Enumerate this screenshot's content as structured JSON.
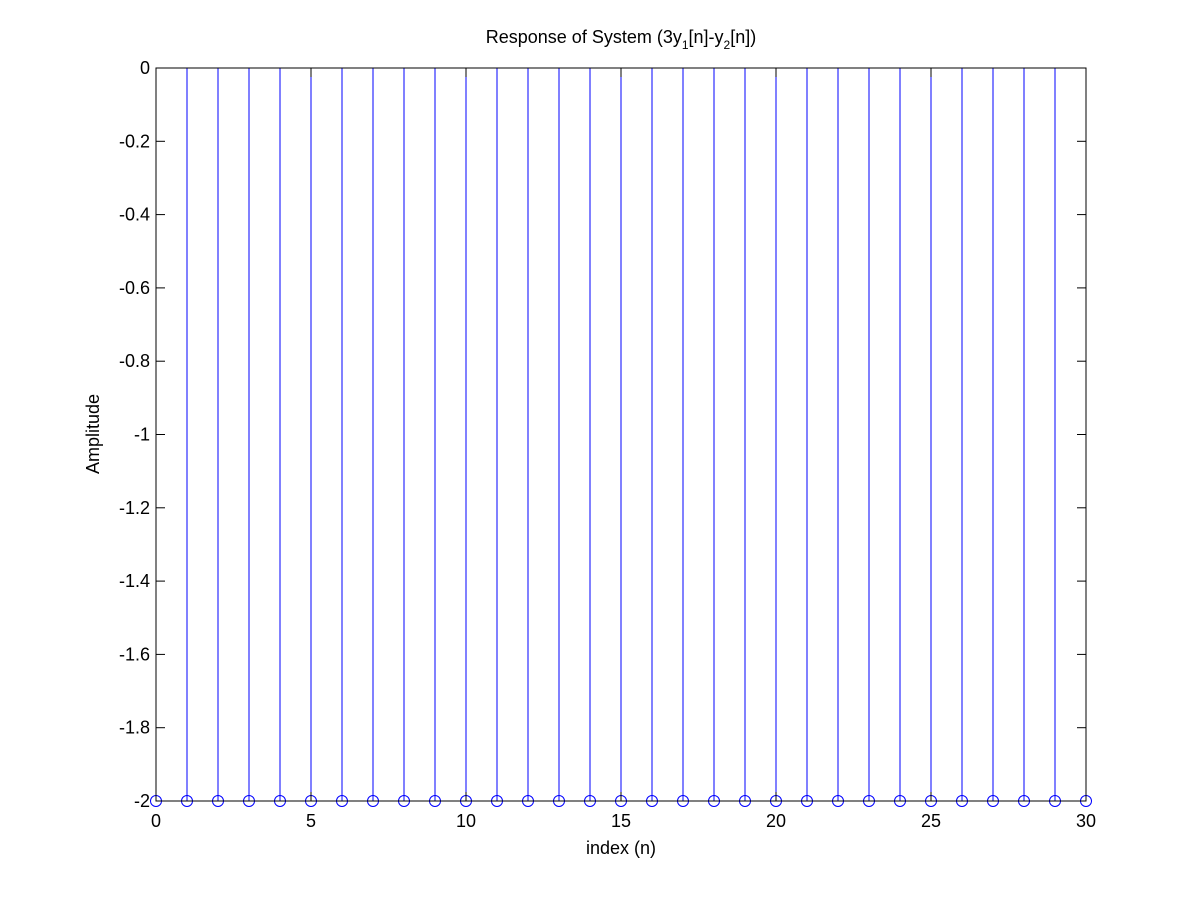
{
  "chart_data": {
    "type": "stem",
    "title": {
      "main": "Response of System (3y",
      "sub1": "1",
      "mid": "[n]-y",
      "sub2": "2",
      "end": "[n])"
    },
    "xlabel": "index (n)",
    "ylabel": "Amplitude",
    "xlim": [
      0,
      30
    ],
    "ylim": [
      -2,
      0
    ],
    "xticks": [
      0,
      5,
      10,
      15,
      20,
      25,
      30
    ],
    "yticks": [
      0,
      -0.2,
      -0.4,
      -0.6,
      -0.8,
      -1,
      -1.2,
      -1.4,
      -1.6,
      -1.8,
      -2
    ],
    "grid": false,
    "series": [
      {
        "x": [
          0,
          1,
          2,
          3,
          4,
          5,
          6,
          7,
          8,
          9,
          10,
          11,
          12,
          13,
          14,
          15,
          16,
          17,
          18,
          19,
          20,
          21,
          22,
          23,
          24,
          25,
          26,
          27,
          28,
          29,
          30
        ],
        "y": [
          -2,
          -2,
          -2,
          -2,
          -2,
          -2,
          -2,
          -2,
          -2,
          -2,
          -2,
          -2,
          -2,
          -2,
          -2,
          -2,
          -2,
          -2,
          -2,
          -2,
          -2,
          -2,
          -2,
          -2,
          -2,
          -2,
          -2,
          -2,
          -2,
          -2,
          -2
        ],
        "baseline": 0,
        "marker": "circle",
        "color": "#0000ff"
      }
    ]
  }
}
